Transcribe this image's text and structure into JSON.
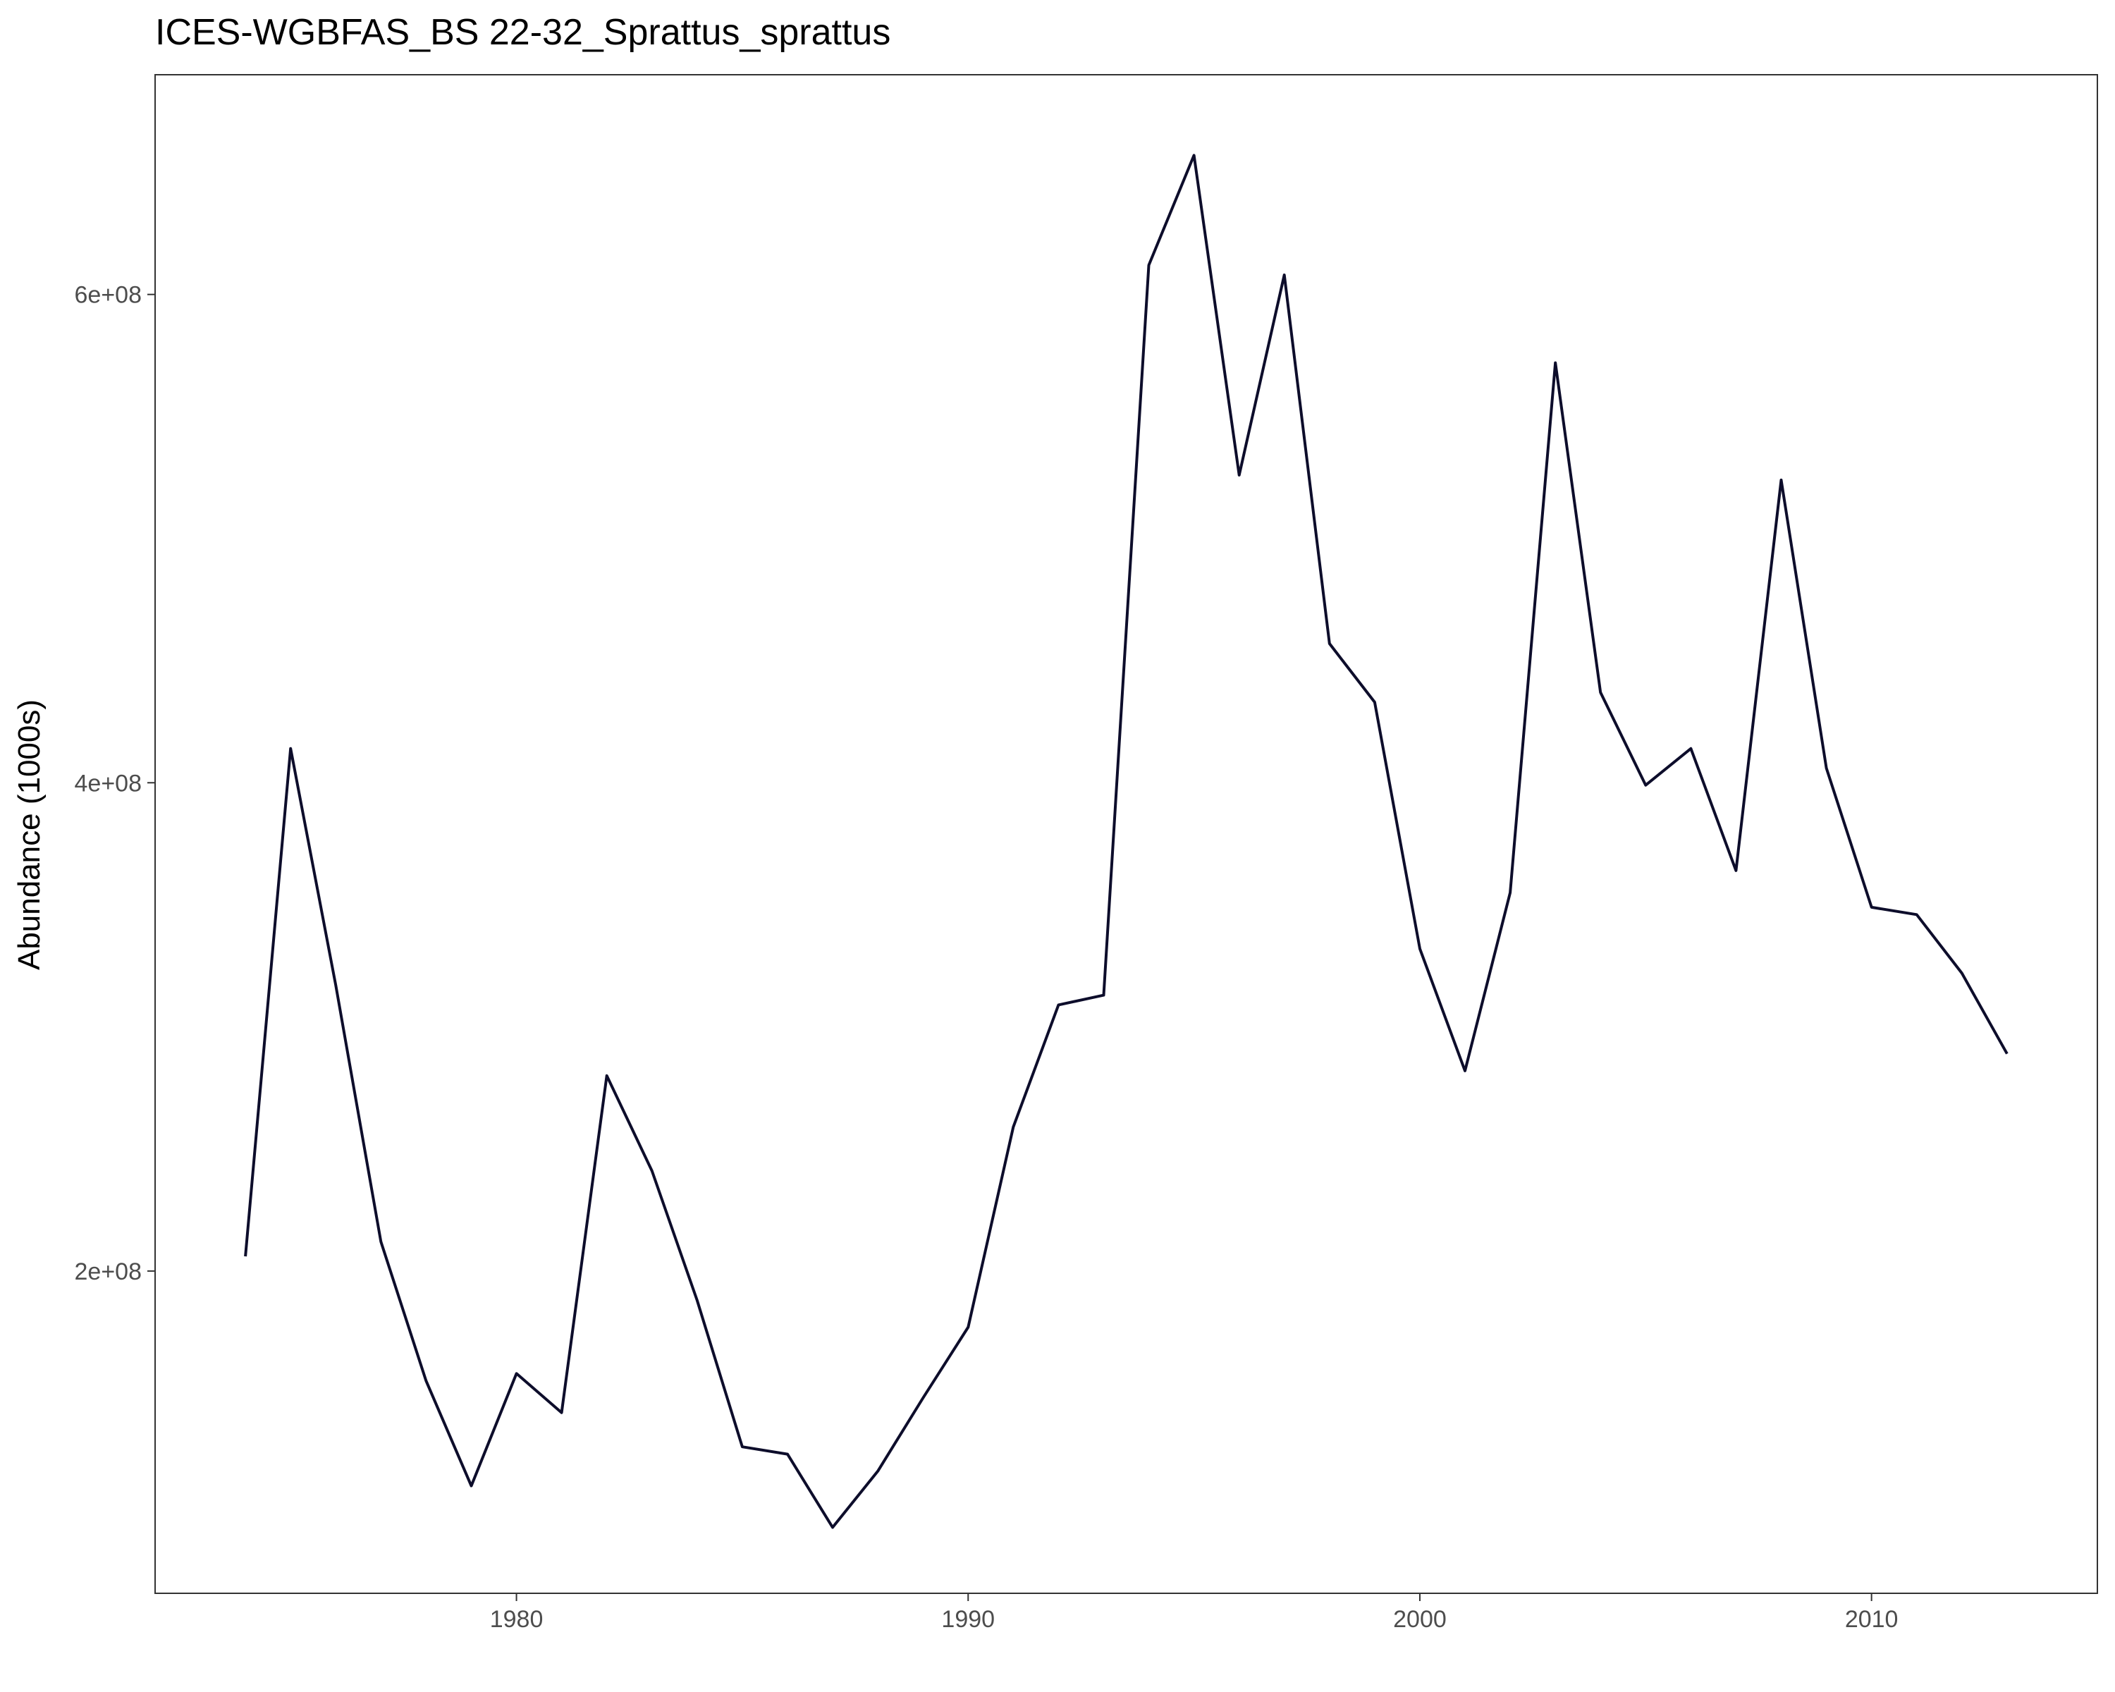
{
  "chart_data": {
    "type": "line",
    "title": "ICES-WGBFAS_BS 22-32_Sprattus_sprattus",
    "xlabel": "",
    "ylabel": "Abundance (1000s)",
    "xlim": [
      1972,
      2015
    ],
    "ylim": [
      68000000,
      690000000
    ],
    "x_ticks": [
      1980,
      1990,
      2000,
      2010
    ],
    "x_tick_labels": [
      "1980",
      "1990",
      "2000",
      "2010"
    ],
    "y_ticks": [
      200000000,
      400000000,
      600000000
    ],
    "y_tick_labels": [
      "2e+08",
      "4e+08",
      "6e+08"
    ],
    "grid": false,
    "legend": "none",
    "series": [
      {
        "color": "#0d0d2b",
        "points": [
          {
            "x": 1974,
            "y": 206000000
          },
          {
            "x": 1975,
            "y": 414000000
          },
          {
            "x": 1976,
            "y": 317000000
          },
          {
            "x": 1977,
            "y": 212000000
          },
          {
            "x": 1978,
            "y": 155000000
          },
          {
            "x": 1979,
            "y": 112000000
          },
          {
            "x": 1980,
            "y": 158000000
          },
          {
            "x": 1981,
            "y": 142000000
          },
          {
            "x": 1982,
            "y": 280000000
          },
          {
            "x": 1983,
            "y": 241000000
          },
          {
            "x": 1984,
            "y": 188000000
          },
          {
            "x": 1985,
            "y": 128000000
          },
          {
            "x": 1986,
            "y": 125000000
          },
          {
            "x": 1987,
            "y": 95000000
          },
          {
            "x": 1988,
            "y": 118000000
          },
          {
            "x": 1989,
            "y": 148000000
          },
          {
            "x": 1990,
            "y": 177000000
          },
          {
            "x": 1991,
            "y": 259000000
          },
          {
            "x": 1992,
            "y": 309000000
          },
          {
            "x": 1993,
            "y": 313000000
          },
          {
            "x": 1994,
            "y": 612000000
          },
          {
            "x": 1995,
            "y": 657000000
          },
          {
            "x": 1996,
            "y": 526000000
          },
          {
            "x": 1997,
            "y": 608000000
          },
          {
            "x": 1998,
            "y": 457000000
          },
          {
            "x": 1999,
            "y": 433000000
          },
          {
            "x": 2000,
            "y": 332000000
          },
          {
            "x": 2001,
            "y": 282000000
          },
          {
            "x": 2002,
            "y": 355000000
          },
          {
            "x": 2003,
            "y": 572000000
          },
          {
            "x": 2004,
            "y": 437000000
          },
          {
            "x": 2005,
            "y": 399000000
          },
          {
            "x": 2006,
            "y": 414000000
          },
          {
            "x": 2007,
            "y": 364000000
          },
          {
            "x": 2008,
            "y": 524000000
          },
          {
            "x": 2009,
            "y": 406000000
          },
          {
            "x": 2010,
            "y": 349000000
          },
          {
            "x": 2011,
            "y": 346000000
          },
          {
            "x": 2012,
            "y": 322000000
          },
          {
            "x": 2013,
            "y": 289000000
          }
        ]
      }
    ]
  }
}
